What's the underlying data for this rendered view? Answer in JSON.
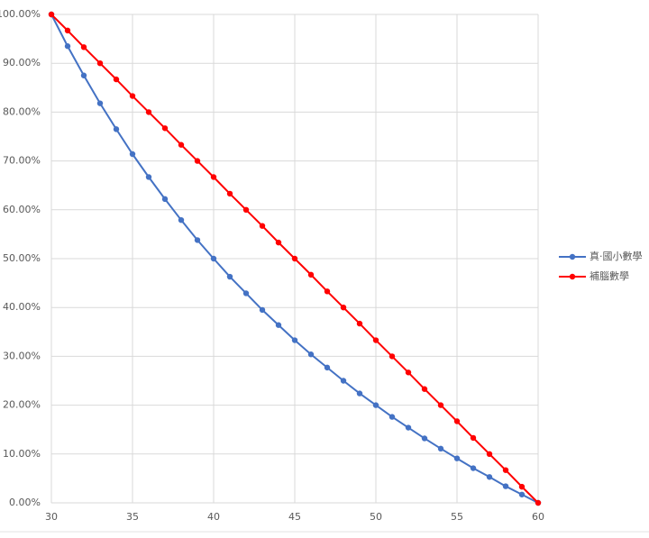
{
  "chart_data": {
    "type": "line",
    "x": [
      30,
      31,
      32,
      33,
      34,
      35,
      36,
      37,
      38,
      39,
      40,
      41,
      42,
      43,
      44,
      45,
      46,
      47,
      48,
      49,
      50,
      51,
      52,
      53,
      54,
      55,
      56,
      57,
      58,
      59,
      60
    ],
    "series": [
      {
        "name": "真·國小數學",
        "color": "#4472c4",
        "values": [
          100,
          93.5,
          87.5,
          81.8,
          76.5,
          71.4,
          66.7,
          62.2,
          57.9,
          53.8,
          50,
          46.3,
          42.9,
          39.5,
          36.4,
          33.3,
          30.4,
          27.7,
          25,
          22.4,
          20,
          17.6,
          15.4,
          13.2,
          11.1,
          9.1,
          7.1,
          5.3,
          3.4,
          1.7,
          0
        ]
      },
      {
        "name": "補腦數學",
        "color": "#ff0000",
        "values": [
          100,
          96.7,
          93.3,
          90,
          86.7,
          83.3,
          80,
          76.7,
          73.3,
          70,
          66.7,
          63.3,
          60,
          56.7,
          53.3,
          50,
          46.7,
          43.3,
          40,
          36.7,
          33.3,
          30,
          26.7,
          23.3,
          20,
          16.7,
          13.3,
          10,
          6.7,
          3.3,
          0
        ]
      }
    ],
    "xlim": [
      30,
      60
    ],
    "xticks": [
      30,
      35,
      40,
      45,
      50,
      55,
      60
    ],
    "ylim": [
      0,
      100
    ],
    "yticks": [
      {
        "value": 0,
        "label": "0.00%"
      },
      {
        "value": 10,
        "label": "10.00%"
      },
      {
        "value": 20,
        "label": "20.00%"
      },
      {
        "value": 30,
        "label": "30.00%"
      },
      {
        "value": 40,
        "label": "40.00%"
      },
      {
        "value": 50,
        "label": "50.00%"
      },
      {
        "value": 60,
        "label": "60.00%"
      },
      {
        "value": 70,
        "label": "70.00%"
      },
      {
        "value": 80,
        "label": "80.00%"
      },
      {
        "value": 90,
        "label": "90.00%"
      },
      {
        "value": 100,
        "label": "100.00%"
      }
    ],
    "grid": true,
    "legend": "right"
  }
}
